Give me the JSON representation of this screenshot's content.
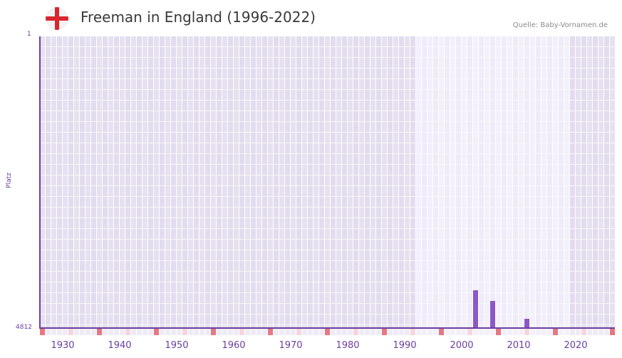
{
  "header": {
    "title": "Freeman in England (1996-2022)",
    "source": "Quelle: Baby-Vornamen.de",
    "flag_icon": "england-flag-icon"
  },
  "colors": {
    "accent": "#6b3fa0",
    "bar": "#8c57c7",
    "marker_decade": "#e57882",
    "marker_half": "#f5d6de",
    "bg_out": "#e2dcee",
    "bg_in": "#efebf9",
    "flag_red": "#d8262f"
  },
  "chart_data": {
    "type": "bar",
    "title": "Freeman in England (1996-2022)",
    "xlabel": "",
    "ylabel": "Platz",
    "y_inverted": true,
    "ylim": [
      1,
      4812
    ],
    "xlim": [
      1928,
      2028
    ],
    "x_ticks": [
      "1930",
      "1940",
      "1950",
      "1960",
      "1970",
      "1980",
      "1990",
      "2000",
      "2010",
      "2020"
    ],
    "y_ticks": [
      "1",
      "4812"
    ],
    "data_range_highlight": [
      1994,
      2020
    ],
    "grid": true,
    "legend": null,
    "categories": [
      2004,
      2007,
      2013
    ],
    "values": [
      4190,
      4365,
      4660
    ]
  }
}
